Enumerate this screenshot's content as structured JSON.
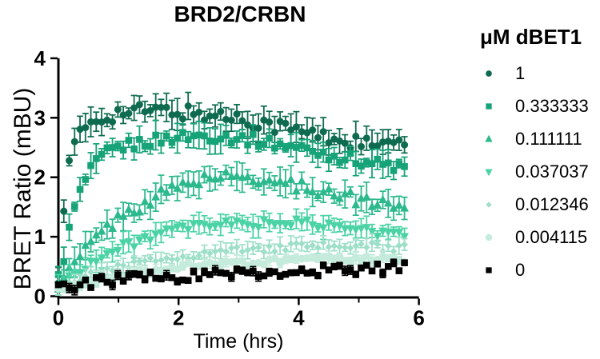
{
  "chart_data": {
    "type": "scatter",
    "title": "BRD2/CRBN",
    "xlabel": "Time (hrs)",
    "ylabel": "BRET Ratio (mBU)",
    "xlim": [
      0,
      6
    ],
    "ylim": [
      0,
      4
    ],
    "xticks": [
      0,
      2,
      4,
      6
    ],
    "xminor": [
      1,
      3,
      5
    ],
    "yticks": [
      0,
      1,
      2,
      3,
      4
    ],
    "legend_title": "μM dBET1",
    "legend_position": "right",
    "grid": false,
    "error_bars": "sd",
    "sampling": {
      "interval_hrs": 0.09,
      "end_hrs": 5.76
    },
    "series": [
      {
        "label": "1",
        "marker": "circle",
        "color": "#0E6B4F",
        "size": 9.0,
        "noise": 0.13,
        "err": 0.18,
        "err_var": 0.1,
        "x": [
          0,
          0.1,
          0.2,
          0.3,
          0.5,
          0.7,
          1.0,
          1.5,
          2.0,
          2.5,
          3.0,
          3.5,
          4.0,
          4.5,
          5.0,
          5.4,
          5.76
        ],
        "y": [
          0.35,
          1.6,
          2.35,
          2.62,
          2.9,
          3.0,
          3.08,
          3.12,
          3.1,
          3.05,
          3.0,
          2.9,
          2.78,
          2.66,
          2.58,
          2.5,
          2.62
        ]
      },
      {
        "label": "0.333333",
        "marker": "square",
        "color": "#16A377",
        "size": 8.6,
        "noise": 0.1,
        "err": 0.16,
        "err_var": 0.09,
        "x": [
          0,
          0.1,
          0.2,
          0.3,
          0.45,
          0.6,
          0.8,
          1.0,
          1.5,
          2.0,
          2.5,
          3.0,
          3.5,
          4.0,
          4.5,
          5.0,
          5.76
        ],
        "y": [
          0.3,
          0.7,
          1.2,
          1.6,
          1.95,
          2.2,
          2.4,
          2.5,
          2.6,
          2.68,
          2.7,
          2.66,
          2.58,
          2.5,
          2.38,
          2.28,
          2.15
        ]
      },
      {
        "label": "0.111111",
        "marker": "triangle-up",
        "color": "#2CB98B",
        "size": 10.8,
        "noise": 0.1,
        "err": 0.17,
        "err_var": 0.09,
        "x": [
          0,
          0.25,
          0.5,
          0.75,
          1.0,
          1.25,
          1.5,
          2.0,
          2.5,
          3.0,
          3.5,
          4.0,
          4.5,
          5.0,
          5.76
        ],
        "y": [
          0.2,
          0.5,
          0.85,
          1.1,
          1.3,
          1.45,
          1.6,
          1.85,
          2.0,
          2.0,
          1.95,
          1.85,
          1.75,
          1.62,
          1.5
        ]
      },
      {
        "label": "0.037037",
        "marker": "triangle-down",
        "color": "#4BD3A5",
        "size": 10.8,
        "noise": 0.07,
        "err": 0.13,
        "err_var": 0.07,
        "x": [
          0,
          0.5,
          1.0,
          1.5,
          2.0,
          2.5,
          3.0,
          4.0,
          4.5,
          5.0,
          5.76
        ],
        "y": [
          0.18,
          0.55,
          0.8,
          1.0,
          1.12,
          1.2,
          1.22,
          1.24,
          1.18,
          1.12,
          1.02
        ]
      },
      {
        "label": "0.012346",
        "marker": "diamond",
        "color": "#9EDFC7",
        "size": 8.6,
        "noise": 0.07,
        "err": 0.1,
        "err_var": 0.05,
        "x": [
          0,
          0.5,
          1.0,
          2.0,
          3.0,
          4.0,
          5.0,
          5.76
        ],
        "y": [
          0.15,
          0.33,
          0.48,
          0.68,
          0.78,
          0.83,
          0.85,
          0.8
        ]
      },
      {
        "label": "0.004115",
        "marker": "circle",
        "color": "#C4EBDB",
        "size": 10.0,
        "noise": 0.055,
        "err": 0.07,
        "err_var": 0.04,
        "x": [
          0,
          0.5,
          1.0,
          2.0,
          3.0,
          4.0,
          5.0,
          5.76
        ],
        "y": [
          0.12,
          0.25,
          0.35,
          0.5,
          0.56,
          0.6,
          0.63,
          0.6
        ]
      },
      {
        "label": "0",
        "marker": "square",
        "color": "#000000",
        "size": 8.6,
        "noise": 0.1,
        "err": 0.05,
        "err_var": 0.03,
        "x": [
          0,
          0.5,
          1.0,
          2.0,
          3.0,
          4.0,
          5.0,
          5.76
        ],
        "y": [
          0.12,
          0.2,
          0.27,
          0.34,
          0.4,
          0.44,
          0.46,
          0.48
        ]
      }
    ]
  }
}
